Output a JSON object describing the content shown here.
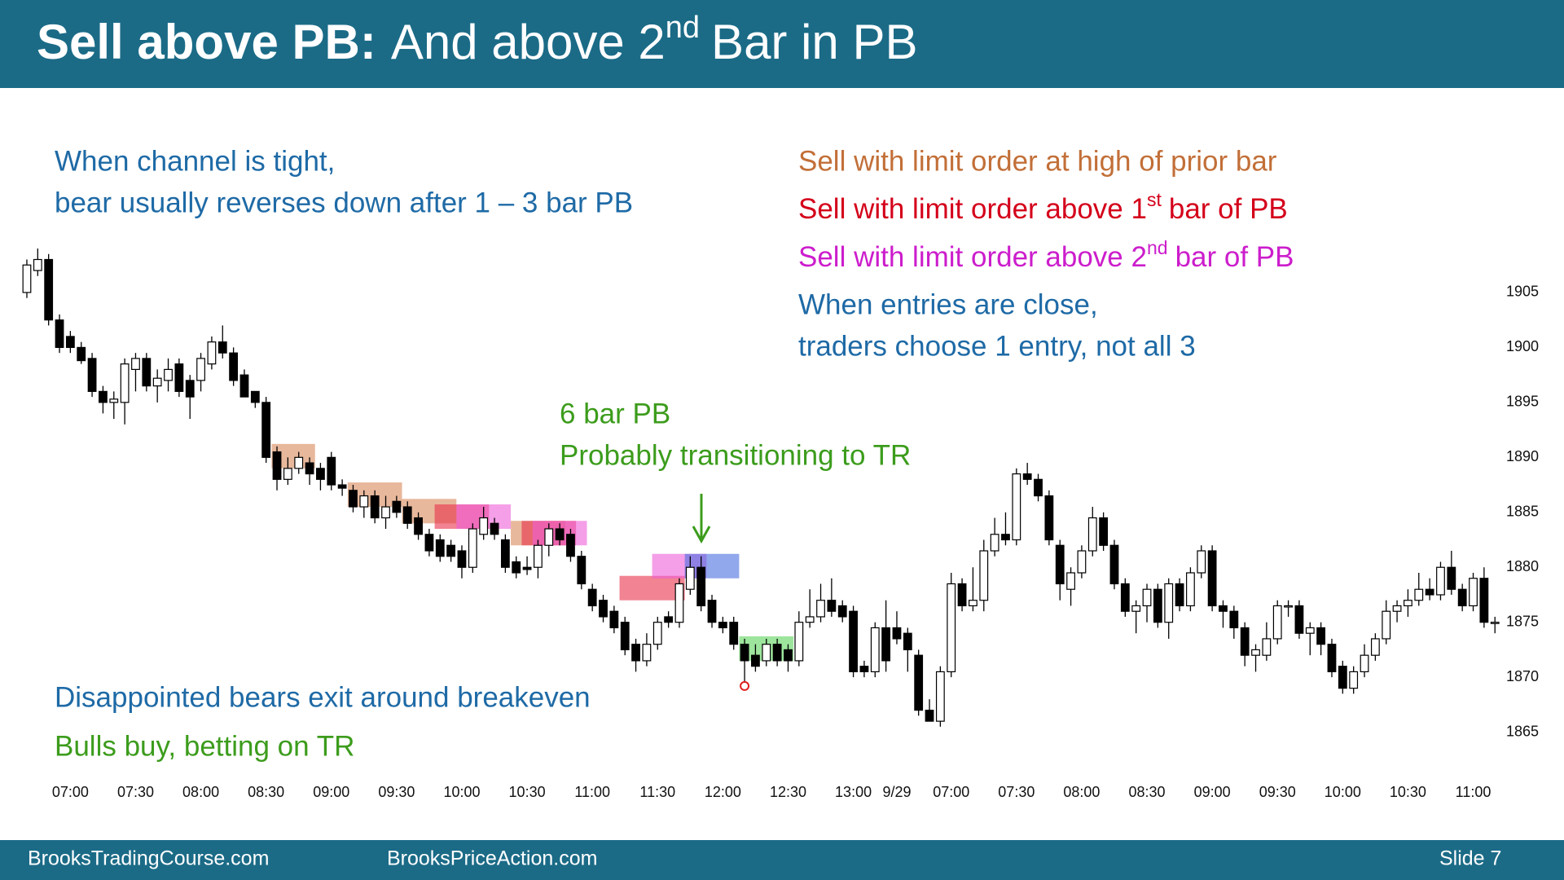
{
  "header": {
    "title_bold": "Sell above PB:",
    "title_main": "And above 2",
    "title_sup": "nd",
    "title_end": "Bar in PB"
  },
  "annotations": {
    "channel_1": "When channel is tight,",
    "channel_2": "bear usually reverses down after 1 – 3 bar PB",
    "prior_bar": "Sell with limit order at high of prior bar",
    "first_bar": {
      "before": "Sell with limit order above 1",
      "sup": "st",
      "after": "bar of PB"
    },
    "second_bar": {
      "before": "Sell with limit order above 2",
      "sup": "nd",
      "after": "bar of PB"
    },
    "close_1": "When entries are close,",
    "close_2": "traders choose 1 entry, not all 3",
    "pb_1": "6 bar PB",
    "pb_2": "Probably transitioning to TR",
    "bears": "Disappointed bears exit around breakeven",
    "bulls": "Bulls buy, betting on TR"
  },
  "chart_data": {
    "type": "candlestick",
    "categories": [
      null,
      null,
      null,
      null,
      "07:00",
      null,
      null,
      null,
      null,
      null,
      "07:30",
      null,
      null,
      null,
      null,
      null,
      "08:00",
      null,
      null,
      null,
      null,
      null,
      "08:30",
      null,
      null,
      null,
      null,
      null,
      "09:00",
      null,
      null,
      null,
      null,
      null,
      "09:30",
      null,
      null,
      null,
      null,
      null,
      "10:00",
      null,
      null,
      null,
      null,
      null,
      "10:30",
      null,
      null,
      null,
      null,
      null,
      "11:00",
      null,
      null,
      null,
      null,
      null,
      "11:30",
      null,
      null,
      null,
      null,
      null,
      "12:00",
      null,
      null,
      null,
      null,
      null,
      "12:30",
      null,
      null,
      null,
      null,
      null,
      "13:00",
      null,
      null,
      null,
      "9/29",
      null,
      null,
      null,
      null,
      "07:00",
      null,
      null,
      null,
      null,
      null,
      "07:30",
      null,
      null,
      null,
      null,
      null,
      "08:00",
      null,
      null,
      null,
      null,
      null,
      "08:30",
      null,
      null,
      null,
      null,
      null,
      "09:00",
      null,
      null,
      null,
      null,
      null,
      "09:30",
      null,
      null,
      null,
      null,
      null,
      "10:00",
      null,
      null,
      null,
      null,
      null,
      "10:30",
      null,
      null,
      null,
      null,
      null,
      "11:00",
      null,
      null
    ],
    "open": [
      1905,
      1907,
      1908,
      1902.5,
      1901,
      1900,
      1899,
      1896,
      1895,
      1895,
      1898,
      1899,
      1896.5,
      1897,
      1898.5,
      1897,
      1897,
      1898.5,
      1900.5,
      1899.5,
      1897.5,
      1896,
      1895,
      1890.5,
      1888,
      1889,
      1889.5,
      1889,
      1890,
      1887.5,
      1887,
      1885.5,
      1886.5,
      1884.5,
      1886,
      1885.5,
      1884.5,
      1883,
      1882.5,
      1882,
      1881.5,
      1880,
      1883,
      1884,
      1882.5,
      1880.5,
      1880,
      1880,
      1882,
      1883.5,
      1883,
      1881,
      1878,
      1877,
      1876,
      1875,
      1873,
      1871.5,
      1873,
      1875.5,
      1875,
      1878,
      1880,
      1877,
      1875,
      1875,
      1873,
      1872,
      1871.5,
      1873,
      1872.5,
      1871.5,
      1875,
      1875.5,
      1877,
      1876.5,
      1876,
      1871,
      1870.5,
      1874.5,
      1874.5,
      1874,
      1872,
      1867,
      1866,
      1870.5,
      1878.5,
      1876.5,
      1877,
      1881.5,
      1883,
      1882.5,
      1888.5,
      1888,
      1886.5,
      1882,
      1878,
      1879.5,
      1881.5,
      1884.5,
      1882,
      1878.5,
      1876,
      1876.5,
      1878,
      1875,
      1878.5,
      1876.5,
      1879.5,
      1881.5,
      1876.5,
      1876,
      1874.5,
      1872,
      1872,
      1873.5,
      1876.5,
      1876.5,
      1874,
      1874.5,
      1873,
      1871,
      1869,
      1870.5,
      1872,
      1873.5,
      1876,
      1876.5,
      1877,
      1878,
      1877.5,
      1880,
      1878,
      1876.5,
      1879,
      1875
    ],
    "high": [
      1908,
      1909,
      1908.5,
      1903,
      1901.5,
      1900.5,
      1899.5,
      1896.5,
      1896,
      1899,
      1899.5,
      1899.5,
      1898,
      1899,
      1899,
      1897.5,
      1899.5,
      1901,
      1902,
      1900,
      1898,
      1896,
      1895.5,
      1891,
      1890,
      1890.5,
      1890,
      1889.5,
      1890.5,
      1888,
      1887.5,
      1887,
      1887,
      1886.5,
      1886.5,
      1886,
      1885,
      1883.5,
      1883,
      1882.5,
      1882,
      1884,
      1885.5,
      1884.5,
      1883,
      1881,
      1881,
      1882.5,
      1884,
      1884,
      1883.5,
      1881.5,
      1878.5,
      1877.5,
      1876.5,
      1875.5,
      1873.5,
      1874,
      1875.5,
      1876,
      1879,
      1881,
      1881,
      1877.5,
      1875.5,
      1875.5,
      1873.5,
      1873,
      1873.5,
      1873.5,
      1873,
      1876,
      1878,
      1878.5,
      1879,
      1877,
      1876.5,
      1871.5,
      1875,
      1877,
      1876,
      1874.5,
      1872.5,
      1868,
      1871,
      1879.5,
      1879,
      1880,
      1882.5,
      1884.5,
      1885,
      1889,
      1889.5,
      1888.5,
      1887,
      1882.5,
      1880,
      1882,
      1885.5,
      1885,
      1882.5,
      1879,
      1877,
      1878.5,
      1878.5,
      1879,
      1879,
      1880,
      1882,
      1882,
      1877,
      1876.5,
      1875,
      1873,
      1875,
      1877,
      1877,
      1877,
      1875,
      1875,
      1873.5,
      1871.5,
      1871,
      1873,
      1874,
      1877,
      1877,
      1878,
      1879.5,
      1879,
      1880.5,
      1881.5,
      1878.5,
      1879.5,
      1880,
      1875.5
    ],
    "low": [
      1904.5,
      1906.5,
      1902,
      1899.5,
      1899.5,
      1898.5,
      1895.5,
      1894,
      1893.5,
      1893,
      1896,
      1896,
      1895,
      1896,
      1895.5,
      1893.5,
      1896,
      1898,
      1899,
      1896.5,
      1895.5,
      1894.5,
      1889.5,
      1887,
      1887.5,
      1888.5,
      1887.5,
      1887,
      1887,
      1886.5,
      1885,
      1884.5,
      1884,
      1883.5,
      1884.5,
      1883.5,
      1882.5,
      1881,
      1880.5,
      1880.5,
      1879,
      1879.5,
      1882.5,
      1882.5,
      1879.5,
      1879,
      1879.3,
      1879,
      1881,
      1882,
      1880.5,
      1878,
      1876,
      1875,
      1874,
      1872,
      1870.5,
      1871,
      1872.5,
      1874.5,
      1874.5,
      1877.5,
      1876,
      1874.5,
      1874,
      1872.5,
      1869.5,
      1870.5,
      1871,
      1871,
      1870.5,
      1871,
      1874.5,
      1875,
      1875.5,
      1875,
      1870,
      1870,
      1870,
      1870.5,
      1873,
      1870.5,
      1866.5,
      1866,
      1865.5,
      1870,
      1876,
      1876,
      1876,
      1881,
      1882,
      1882,
      1887.5,
      1886,
      1882,
      1877,
      1876.5,
      1879,
      1881,
      1881.5,
      1878,
      1875.5,
      1874,
      1875,
      1874.5,
      1873.5,
      1876,
      1876,
      1879,
      1876,
      1874.5,
      1873.5,
      1871,
      1870.5,
      1871.5,
      1873,
      1875.5,
      1873.5,
      1872,
      1872,
      1870,
      1868.5,
      1868.5,
      1870,
      1871.5,
      1873,
      1875,
      1875.5,
      1876.5,
      1877,
      1877,
      1877.5,
      1876,
      1876,
      1874.5,
      1874
    ],
    "close": [
      1907.5,
      1908,
      1902.5,
      1900,
      1900,
      1898.8,
      1896,
      1895,
      1895.3,
      1898.5,
      1899,
      1896.5,
      1897.2,
      1898,
      1896,
      1895.5,
      1899,
      1900.5,
      1899.5,
      1897,
      1895.5,
      1895,
      1890,
      1888,
      1889,
      1890,
      1888.5,
      1888,
      1887.5,
      1887.2,
      1885.5,
      1886.5,
      1884.5,
      1885.5,
      1885,
      1884,
      1883,
      1881.5,
      1881,
      1881,
      1880,
      1883.5,
      1884.5,
      1883,
      1880,
      1879.5,
      1879.8,
      1882,
      1883.5,
      1882.5,
      1881,
      1878.5,
      1876.5,
      1875.5,
      1874.5,
      1872.5,
      1871.5,
      1873,
      1875,
      1875,
      1878.5,
      1880,
      1876.5,
      1875,
      1874.5,
      1873,
      1871.5,
      1871,
      1873,
      1871.5,
      1871.5,
      1875,
      1875.5,
      1877,
      1876,
      1875.5,
      1870.5,
      1870.5,
      1874.5,
      1871.5,
      1873.5,
      1872.5,
      1867,
      1866,
      1870.5,
      1878.5,
      1876.5,
      1877,
      1881.5,
      1883,
      1882.5,
      1888.5,
      1888,
      1886.5,
      1882.5,
      1878.5,
      1879.5,
      1881.5,
      1884.5,
      1882,
      1878.5,
      1876,
      1876.5,
      1878,
      1875,
      1878.5,
      1876.5,
      1879.5,
      1881.5,
      1876.5,
      1876,
      1874.5,
      1872,
      1872.5,
      1873.5,
      1876.5,
      1876.5,
      1874,
      1874.5,
      1873,
      1870.5,
      1869,
      1870.5,
      1872,
      1873.5,
      1876,
      1876.5,
      1877,
      1878,
      1877.5,
      1880,
      1878,
      1876.5,
      1879,
      1875,
      1875
    ],
    "up_color": "#ffffff",
    "down_color": "#000000",
    "ylim": [
      1863,
      1910
    ],
    "yticks": [
      1865,
      1870,
      1875,
      1880,
      1885,
      1890,
      1895,
      1900,
      1905
    ],
    "grid": false
  },
  "footer": {
    "site_1": "BrooksTradingCourse.com",
    "site_2": "BrooksPriceAction.com",
    "slide": "Slide  7"
  }
}
